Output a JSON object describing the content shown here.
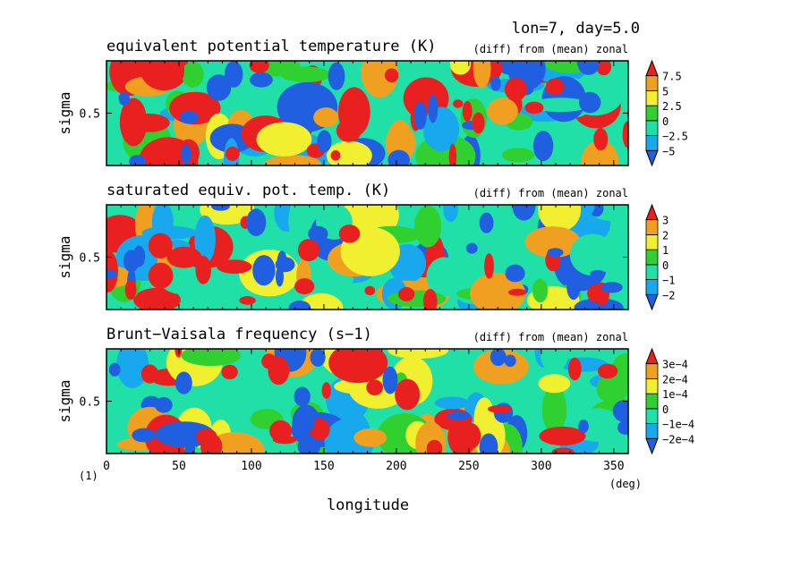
{
  "header": {
    "text": "lon=7, day=5.0"
  },
  "figure_label": "(1)",
  "x_axis": {
    "label": "longitude",
    "units": "(deg)"
  },
  "chart_data": [
    {
      "type": "heatmap",
      "title": "equivalent potential temperature (K)",
      "subtitle": "(diff) from (mean) zonal",
      "xlabel": "longitude",
      "ylabel": "sigma",
      "xlim": [
        0,
        360
      ],
      "ylim": [
        0,
        1
      ],
      "x_ticks": [
        0,
        50,
        100,
        150,
        200,
        250,
        300,
        350
      ],
      "y_ticks": [
        {
          "value": 0.5,
          "label": "0.5"
        }
      ],
      "colorbar_labels": [
        "7.5",
        "5",
        "2.5",
        "0",
        "−2.5",
        "−5"
      ],
      "levels": [
        -5,
        -2.5,
        0,
        2.5,
        5,
        7.5
      ],
      "colors": [
        "#2060e0",
        "#18a8ee",
        "#20e0a8",
        "#30d030",
        "#f0f030",
        "#f0a020",
        "#e82020"
      ]
    },
    {
      "type": "heatmap",
      "title": "saturated equiv. pot. temp. (K)",
      "subtitle": "(diff) from (mean) zonal",
      "xlabel": "longitude",
      "ylabel": "sigma",
      "xlim": [
        0,
        360
      ],
      "ylim": [
        0,
        1
      ],
      "x_ticks": [
        0,
        50,
        100,
        150,
        200,
        250,
        300,
        350
      ],
      "y_ticks": [
        {
          "value": 0.5,
          "label": "0.5"
        }
      ],
      "colorbar_labels": [
        "3",
        "2",
        "1",
        "0",
        "−1",
        "−2"
      ],
      "levels": [
        -2,
        -1,
        0,
        1,
        2,
        3
      ],
      "colors": [
        "#2060e0",
        "#18a8ee",
        "#20e0a8",
        "#30d030",
        "#f0f030",
        "#f0a020",
        "#e82020"
      ]
    },
    {
      "type": "heatmap",
      "title": "Brunt−Vaisala frequency (s−1)",
      "subtitle": "(diff) from (mean) zonal",
      "xlabel": "longitude",
      "ylabel": "sigma",
      "xlim": [
        0,
        360
      ],
      "ylim": [
        0,
        1
      ],
      "x_ticks": [
        0,
        50,
        100,
        150,
        200,
        250,
        300,
        350
      ],
      "y_ticks": [
        {
          "value": 0.5,
          "label": "0.5"
        }
      ],
      "colorbar_labels": [
        "3e−4",
        "2e−4",
        "1e−4",
        "0",
        "−1e−4",
        "−2e−4"
      ],
      "levels": [
        -0.0002,
        -0.0001,
        0,
        0.0001,
        0.0002,
        0.0003
      ],
      "colors": [
        "#2060e0",
        "#18a8ee",
        "#20e0a8",
        "#30d030",
        "#f0f030",
        "#f0a020",
        "#e82020"
      ]
    }
  ]
}
